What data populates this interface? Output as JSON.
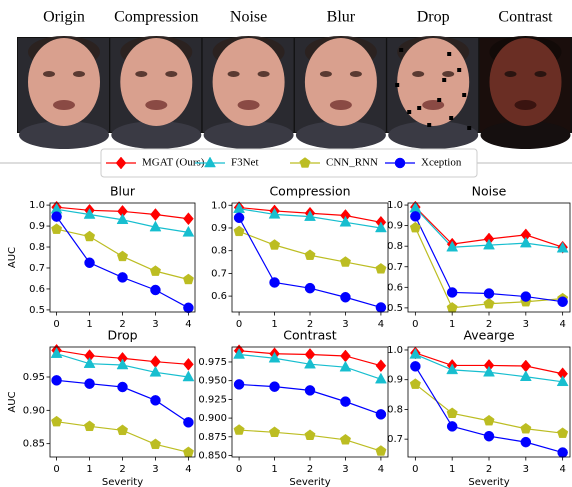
{
  "perturbations": [
    "Origin",
    "Compression",
    "Noise",
    "Blur",
    "Drop",
    "Contrast"
  ],
  "chart_data": [
    {
      "type": "line",
      "title": "Blur",
      "ylabel": "AUC",
      "x": [
        0,
        1,
        2,
        3,
        4
      ],
      "xlim": [
        -0.2,
        4.2
      ],
      "xticks": [
        0,
        1,
        2,
        3,
        4
      ],
      "ylim": [
        0.49,
        1.01
      ],
      "yticks": [
        0.5,
        0.6,
        0.7,
        0.8,
        0.9,
        {
          "value": 1,
          "label": "1.0"
        }
      ],
      "series": [
        {
          "name": "MGAT (Ours)",
          "color": "#ff0000",
          "marker": "diamond",
          "values": [
            0.99,
            0.975,
            0.97,
            0.955,
            0.935
          ]
        },
        {
          "name": "F3Net",
          "color": "#17becf",
          "marker": "triangle",
          "values": [
            0.98,
            0.955,
            0.93,
            0.895,
            0.87
          ]
        },
        {
          "name": "CNN_RNN",
          "color": "#bcbd22",
          "marker": "pentagon",
          "values": [
            0.885,
            0.85,
            0.755,
            0.685,
            0.645
          ]
        },
        {
          "name": "Xception",
          "color": "#0000ff",
          "marker": "circle",
          "values": [
            0.945,
            0.725,
            0.655,
            0.595,
            0.51
          ]
        }
      ]
    },
    {
      "type": "line",
      "title": "Compression",
      "x": [
        0,
        1,
        2,
        3,
        4
      ],
      "xlim": [
        -0.2,
        4.2
      ],
      "xticks": [
        0,
        1,
        2,
        3,
        4
      ],
      "ylim": [
        0.53,
        1.01
      ],
      "yticks": [
        0.6,
        0.7,
        0.8,
        0.9,
        {
          "value": 1,
          "label": "1.0"
        }
      ],
      "series": [
        {
          "name": "MGAT (Ours)",
          "color": "#ff0000",
          "marker": "diamond",
          "values": [
            0.99,
            0.975,
            0.965,
            0.955,
            0.925
          ]
        },
        {
          "name": "F3Net",
          "color": "#17becf",
          "marker": "triangle",
          "values": [
            0.985,
            0.96,
            0.95,
            0.925,
            0.9
          ]
        },
        {
          "name": "CNN_RNN",
          "color": "#bcbd22",
          "marker": "pentagon",
          "values": [
            0.885,
            0.825,
            0.78,
            0.75,
            0.72
          ]
        },
        {
          "name": "Xception",
          "color": "#0000ff",
          "marker": "circle",
          "values": [
            0.945,
            0.66,
            0.635,
            0.595,
            0.55
          ]
        }
      ]
    },
    {
      "type": "line",
      "title": "Noise",
      "x": [
        0,
        1,
        2,
        3,
        4
      ],
      "xlim": [
        -0.2,
        4.2
      ],
      "xticks": [
        0,
        1,
        2,
        3,
        4
      ],
      "ylim": [
        0.48,
        1.01
      ],
      "yticks": [
        0.5,
        0.6,
        0.7,
        0.8,
        0.9,
        {
          "value": 1,
          "label": "1.0"
        }
      ],
      "series": [
        {
          "name": "MGAT (Ours)",
          "color": "#ff0000",
          "marker": "diamond",
          "values": [
            0.99,
            0.81,
            0.835,
            0.855,
            0.795
          ]
        },
        {
          "name": "F3Net",
          "color": "#17becf",
          "marker": "triangle",
          "values": [
            0.985,
            0.795,
            0.805,
            0.815,
            0.79
          ]
        },
        {
          "name": "CNN_RNN",
          "color": "#bcbd22",
          "marker": "pentagon",
          "values": [
            0.89,
            0.5,
            0.52,
            0.53,
            0.545
          ]
        },
        {
          "name": "Xception",
          "color": "#0000ff",
          "marker": "circle",
          "values": [
            0.945,
            0.575,
            0.57,
            0.555,
            0.53
          ]
        }
      ]
    },
    {
      "type": "line",
      "title": "Drop",
      "xlabel": "Severity",
      "ylabel": "AUC",
      "x": [
        0,
        1,
        2,
        3,
        4
      ],
      "xlim": [
        -0.2,
        4.2
      ],
      "xticks": [
        0,
        1,
        2,
        3,
        4
      ],
      "ylim": [
        0.83,
        0.995
      ],
      "yticks": [
        0.85,
        {
          "value": 0.9,
          "label": "0.90"
        },
        0.95
      ],
      "series": [
        {
          "name": "MGAT (Ours)",
          "color": "#ff0000",
          "marker": "diamond",
          "values": [
            0.99,
            0.982,
            0.978,
            0.973,
            0.969
          ]
        },
        {
          "name": "F3Net",
          "color": "#17becf",
          "marker": "triangle",
          "values": [
            0.985,
            0.97,
            0.968,
            0.957,
            0.95
          ]
        },
        {
          "name": "CNN_RNN",
          "color": "#bcbd22",
          "marker": "pentagon",
          "values": [
            0.883,
            0.876,
            0.87,
            0.849,
            0.837
          ]
        },
        {
          "name": "Xception",
          "color": "#0000ff",
          "marker": "circle",
          "values": [
            0.945,
            0.94,
            0.935,
            0.915,
            0.882
          ]
        }
      ]
    },
    {
      "type": "line",
      "title": "Contrast",
      "xlabel": "Severity",
      "x": [
        0,
        1,
        2,
        3,
        4
      ],
      "xlim": [
        -0.2,
        4.2
      ],
      "xticks": [
        0,
        1,
        2,
        3,
        4
      ],
      "ylim": [
        0.848,
        0.995
      ],
      "yticks": [
        {
          "value": 0.85,
          "label": "0.850"
        },
        0.875,
        {
          "value": 0.9,
          "label": "0.900"
        },
        0.925,
        {
          "value": 0.95,
          "label": "0.950"
        },
        0.975
      ],
      "series": [
        {
          "name": "MGAT (Ours)",
          "color": "#ff0000",
          "marker": "diamond",
          "values": [
            0.99,
            0.986,
            0.985,
            0.983,
            0.97
          ]
        },
        {
          "name": "F3Net",
          "color": "#17becf",
          "marker": "triangle",
          "values": [
            0.985,
            0.98,
            0.972,
            0.968,
            0.952
          ]
        },
        {
          "name": "CNN_RNN",
          "color": "#bcbd22",
          "marker": "pentagon",
          "values": [
            0.884,
            0.881,
            0.877,
            0.871,
            0.856
          ]
        },
        {
          "name": "Xception",
          "color": "#0000ff",
          "marker": "circle",
          "values": [
            0.945,
            0.942,
            0.937,
            0.922,
            0.905
          ]
        }
      ]
    },
    {
      "type": "line",
      "title": "Avearge",
      "xlabel": "Severity",
      "x": [
        0,
        1,
        2,
        3,
        4
      ],
      "xlim": [
        -0.2,
        4.2
      ],
      "xticks": [
        0,
        1,
        2,
        3,
        4
      ],
      "ylim": [
        0.64,
        1.01
      ],
      "yticks": [
        0.7,
        0.8,
        0.9,
        {
          "value": 1,
          "label": "1.0"
        }
      ],
      "series": [
        {
          "name": "MGAT (Ours)",
          "color": "#ff0000",
          "marker": "diamond",
          "values": [
            0.99,
            0.948,
            0.948,
            0.946,
            0.92
          ]
        },
        {
          "name": "F3Net",
          "color": "#17becf",
          "marker": "triangle",
          "values": [
            0.985,
            0.933,
            0.925,
            0.91,
            0.893
          ]
        },
        {
          "name": "CNN_RNN",
          "color": "#bcbd22",
          "marker": "pentagon",
          "values": [
            0.885,
            0.787,
            0.762,
            0.735,
            0.72
          ]
        },
        {
          "name": "Xception",
          "color": "#0000ff",
          "marker": "circle",
          "values": [
            0.945,
            0.743,
            0.71,
            0.69,
            0.655
          ]
        }
      ]
    }
  ]
}
